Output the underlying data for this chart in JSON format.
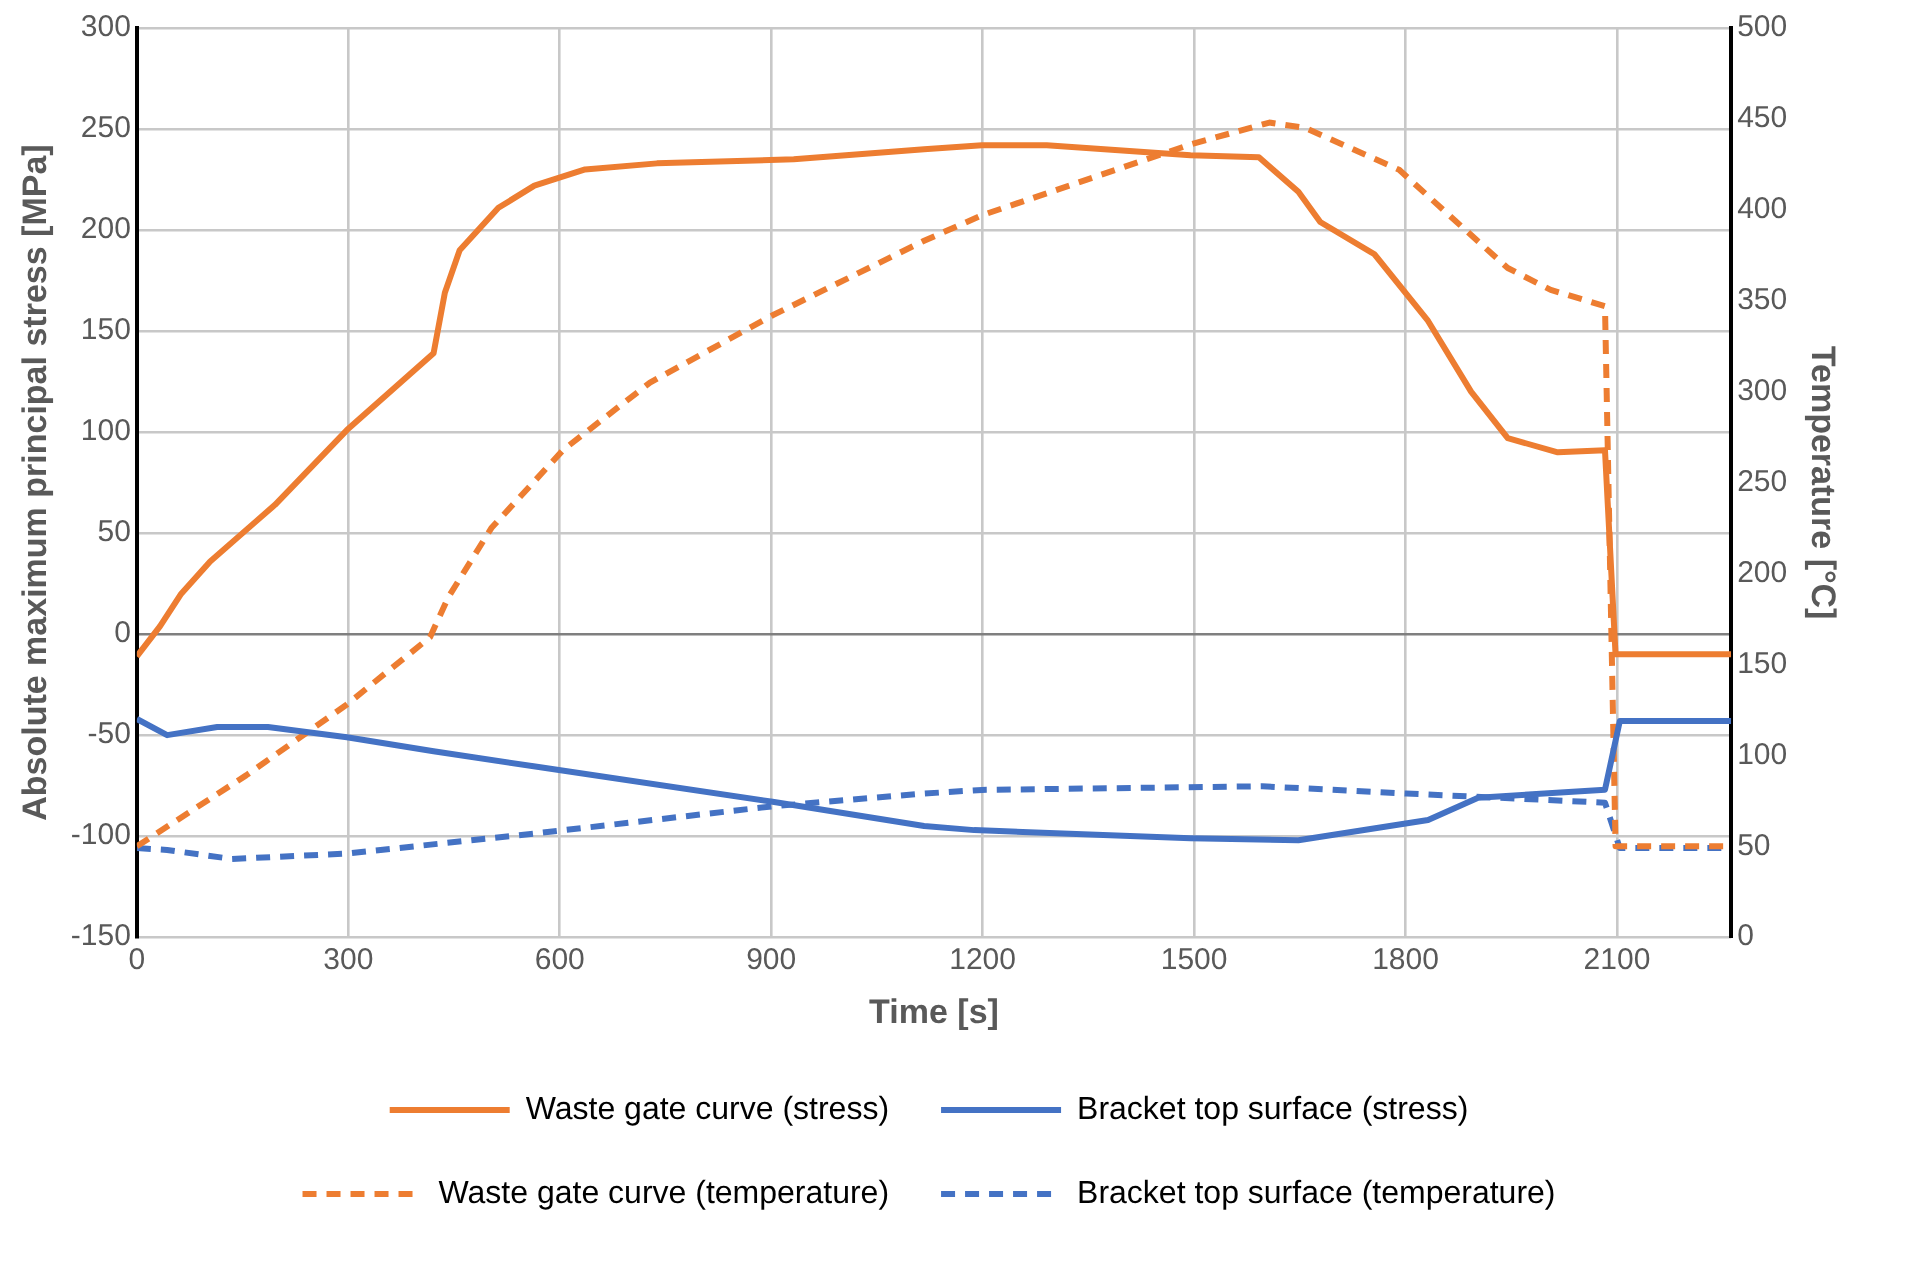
{
  "chart_data": {
    "type": "line",
    "xlabel": "Time [s]",
    "ylabel": "Absolute maximum principal stress [MPa]",
    "y2label": "Temperature [°C]",
    "xlim": [
      0,
      2262
    ],
    "xticks": [
      0,
      300,
      600,
      900,
      1200,
      1500,
      1800,
      2100
    ],
    "ylim": [
      -150,
      300
    ],
    "yticks": [
      -150,
      -100,
      -50,
      0,
      50,
      100,
      150,
      200,
      250,
      300
    ],
    "y2lim": [
      0,
      500
    ],
    "y2ticks": [
      0,
      50,
      100,
      150,
      200,
      250,
      300,
      350,
      400,
      450,
      500
    ],
    "grid": true,
    "legend": "bottom",
    "marker": "none",
    "series": [
      {
        "name": "Waste gate curve (stress)",
        "color": "#ed7d31",
        "line_style": "solid",
        "x": [
          0,
          33,
          63,
          104,
          196,
          298,
          421,
          437,
          458,
          513,
          564,
          636,
          738,
          932,
          1117,
          1199,
          1291,
          1495,
          1592,
          1648,
          1679,
          1756,
          1832,
          1893,
          1945,
          2016,
          2083,
          2098,
          2262
        ],
        "values": [
          -11,
          4,
          20,
          36,
          64,
          101,
          139,
          169,
          190,
          211,
          222,
          230,
          233,
          235,
          240,
          242,
          242,
          237,
          236,
          219,
          204,
          188,
          155,
          120,
          97,
          90,
          91,
          -10,
          -10
        ]
      },
      {
        "name": "Bracket top surface (stress)",
        "color": "#4472c4",
        "line_style": "solid",
        "x": [
          0,
          43,
          114,
          186,
          298,
          421,
          902,
          1117,
          1188,
          1495,
          1648,
          1832,
          1903,
          2083,
          2104,
          2262
        ],
        "values": [
          -42,
          -50,
          -46,
          -46,
          -51,
          -58,
          -83,
          -95,
          -97,
          -101,
          -102,
          -92,
          -81,
          -77,
          -43,
          -43
        ]
      },
      {
        "name": "Waste gate curve (temperature)",
        "color": "#ed7d31",
        "line_style": "dashed",
        "axis": "y2",
        "x": [
          0,
          155,
          298,
          416,
          442,
          503,
          605,
          728,
          902,
          1117,
          1199,
          1495,
          1607,
          1658,
          1791,
          1862,
          1945,
          2006,
          2083,
          2098,
          2262
        ],
        "values": [
          50,
          89,
          128,
          165,
          187,
          225,
          268,
          305,
          342,
          383,
          397,
          436,
          448,
          445,
          422,
          397,
          368,
          356,
          347,
          50,
          50
        ]
      },
      {
        "name": "Bracket top surface (temperature)",
        "color": "#4472c4",
        "line_style": "dashed",
        "axis": "y2",
        "x": [
          0,
          43,
          135,
          298,
          564,
          902,
          1117,
          1199,
          1597,
          1801,
          2083,
          2104,
          2262
        ],
        "values": [
          49,
          48,
          43,
          46,
          57,
          72,
          79,
          81,
          83,
          79,
          74,
          49,
          49
        ]
      }
    ]
  }
}
